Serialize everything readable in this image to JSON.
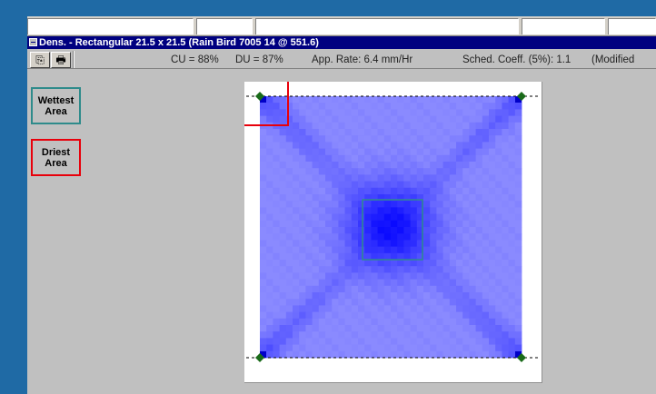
{
  "window": {
    "title": "Dens. - Rectangular 21.5 x 21.5 (Rain Bird 7005 14 @ 551.6)"
  },
  "toolbar": {
    "copy_icon": "copy-icon",
    "print_icon": "printer-icon",
    "cu": "CU = 88%",
    "du": "DU = 87%",
    "app_rate": "App. Rate: 6.4 mm/Hr",
    "sched_coeff": "Sched. Coeff. (5%): 1.1",
    "modified": "(Modified"
  },
  "sidebar": {
    "wettest_label": "Wettest\nArea",
    "wettest_color": "#2e8b8b",
    "driest_label": "Driest\nArea",
    "driest_color": "#e8000b"
  },
  "density_plot": {
    "grid_cells": 40,
    "high_color": "#0000ff",
    "low_color": "#8a8aff",
    "sprinkler_marker_color": "#1a6b1a",
    "head_marker_color": "#0000c8"
  }
}
